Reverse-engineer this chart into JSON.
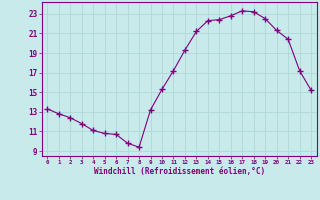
{
  "x": [
    0,
    1,
    2,
    3,
    4,
    5,
    6,
    7,
    8,
    9,
    10,
    11,
    12,
    13,
    14,
    15,
    16,
    17,
    18,
    19,
    20,
    21,
    22,
    23
  ],
  "y": [
    13.3,
    12.8,
    12.4,
    11.8,
    11.1,
    10.8,
    10.7,
    9.8,
    9.4,
    13.2,
    15.3,
    17.2,
    19.3,
    21.2,
    22.3,
    22.4,
    22.8,
    23.3,
    23.2,
    22.5,
    21.3,
    20.4,
    17.2,
    15.2
  ],
  "line_color": "#800080",
  "marker": "+",
  "marker_size": 4,
  "bg_color": "#c8eaea",
  "grid_color": "#b0d8d8",
  "xlabel": "Windchill (Refroidissement éolien,°C)",
  "ylabel_ticks": [
    9,
    11,
    13,
    15,
    17,
    19,
    21,
    23
  ],
  "xlim": [
    -0.5,
    23.5
  ],
  "ylim": [
    8.5,
    24.2
  ],
  "xtick_labels": [
    "0",
    "1",
    "2",
    "3",
    "4",
    "5",
    "6",
    "7",
    "8",
    "9",
    "10",
    "11",
    "12",
    "13",
    "14",
    "15",
    "16",
    "17",
    "18",
    "19",
    "20",
    "21",
    "22",
    "23"
  ],
  "label_color": "#800080",
  "tick_color": "#800080",
  "axis_color": "#800080",
  "spine_color": "#800080"
}
